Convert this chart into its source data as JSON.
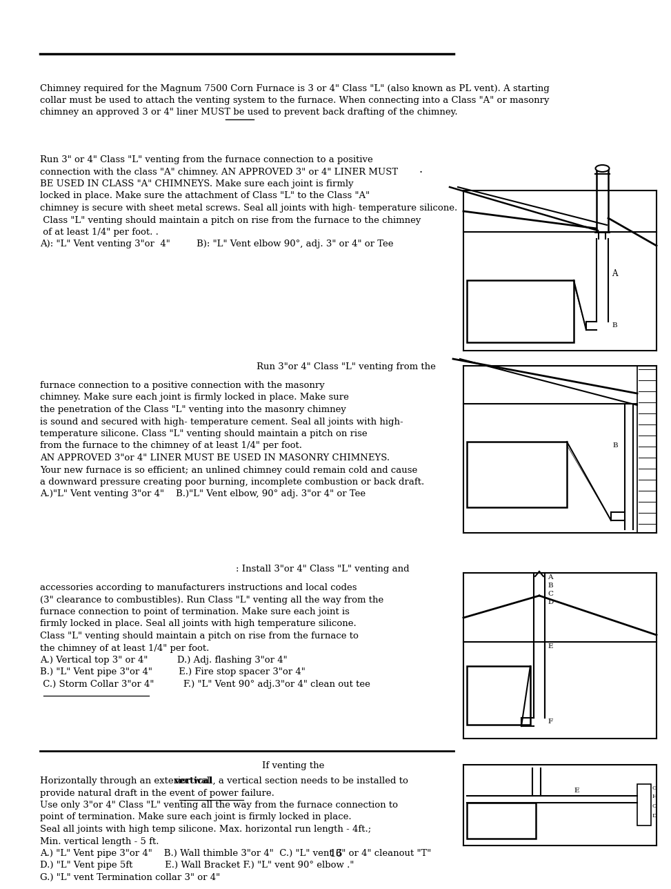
{
  "bg_color": "#ffffff",
  "page_number": "16",
  "intro": "Chimney required for the Magnum 7500 Corn Furnace is 3 or 4\" Class \"L\" (also known as PL vent). A starting\ncollar must be used to attach the venting system to the furnace. When connecting into a Class \"A\" or masonry\nchimney an approved 3 or 4\" liner MUST be used to prevent back drafting of the chimney.",
  "s1": "Run 3\" or 4\" Class \"L\" venting from the furnace connection to a positive\nconnection with the class \"A\" chimney. AN APPROVED 3\" or 4\" LINER MUST\nBE USED IN CLASS \"A\" CHIMNEYS. Make sure each joint is firmly\nlocked in place. Make sure the attachment of Class \"L\" to the Class \"A\"\nchimney is secure with sheet metal screws. Seal all joints with high- temperature silicone.\n Class \"L\" venting should maintain a pitch on rise from the furnace to the chimney\n of at least 1/4\" per foot. .\nA): \"L\" Vent venting 3\"or  4\"         B): \"L\" Vent elbow 90°, adj. 3\" or 4\" or Tee",
  "s2c": "Run 3\"or 4\" Class \"L\" venting from the",
  "s2": "furnace connection to a positive connection with the masonry\nchimney. Make sure each joint is firmly locked in place. Make sure\nthe penetration of the Class \"L\" venting into the masonry chimney\nis sound and secured with high- temperature cement. Seal all joints with high-\ntemperature silicone. Class \"L\" venting should maintain a pitch on rise\nfrom the furnace to the chimney of at least 1/4\" per foot.\nAN APPROVED 3\"or 4\" LINER MUST BE USED IN MASONRY CHIMNEYS.\nYour new furnace is so efficient; an unlined chimney could remain cold and cause\na downward pressure creating poor burning, incomplete combustion or back draft.\nA.)\"L\" Vent venting 3\"or 4\"    B.)\"L\" Vent elbow, 90° adj. 3\"or 4\" or Tee",
  "s3c": ": Install 3\"or 4\" Class \"L\" venting and",
  "s3": "accessories according to manufacturers instructions and local codes\n(3\" clearance to combustibles). Run Class \"L\" venting all the way from the\nfurnace connection to point of termination. Make sure each joint is\nfirmly locked in place. Seal all joints with high temperature silicone.\nClass \"L\" venting should maintain a pitch on rise from the furnace to\nthe chimney of at least 1/4\" per foot.\nA.) Vertical top 3\" or 4\"          D.) Adj. flashing 3\"or 4\"\nB.) \"L\" Vent pipe 3\"or 4\"         E.) Fire stop spacer 3\"or 4\"\n C.) Storm Collar 3\"or 4\"          F.) \"L\" Vent 90° adj.3\"or 4\" clean out tee",
  "s4c": "If venting the",
  "s4": "Horizontally through an exterior wall, a vertical section needs to be installed to\nprovide natural draft in the event of power failure.\nUse only 3\"or 4\" Class \"L\" venting all the way from the furnace connection to\npoint of termination. Make sure each joint is firmly locked in place.\nSeal all joints with high temp silicone. Max. horizontal run length - 4ft.;\nMin. vertical length - 5 ft.\nA.) \"L\" Vent pipe 3\"or 4\"    B.) Wall thimble 3\"or 4\"  C.) \"L\" vent 3\" or 4\" cleanout \"T\"\nD.) \"L\" Vent pipe 5ft           E.) Wall Bracket F.) \"L\" vent 90° elbow .\"\nG.) \"L\" vent Termination collar 3\" or 4\""
}
